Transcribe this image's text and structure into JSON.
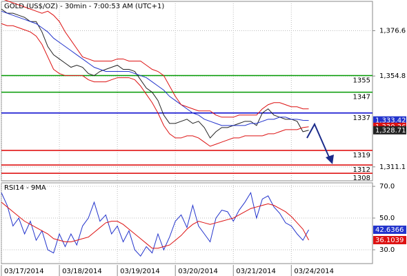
{
  "chart_data": [
    {
      "type": "line",
      "title": "GOLD (US$/OZ) - 30min - 7:00:53 AM (UTC+1)",
      "xlim": [
        0,
        64
      ],
      "xticks": [
        {
          "value": 0,
          "label": "03/17/2014"
        },
        {
          "value": 10,
          "label": "03/18/2014"
        },
        {
          "value": 20,
          "label": "03/19/2014"
        },
        {
          "value": 30,
          "label": "03/20/2014"
        },
        {
          "value": 40,
          "label": "03/21/2014"
        },
        {
          "value": 50,
          "label": "03/24/2014"
        }
      ],
      "ylim": [
        1304.4,
        1390.7
      ],
      "yticks": [
        {
          "value": 1376.6,
          "label": "1,376.6"
        },
        {
          "value": 1354.8,
          "label": "1,354.8"
        },
        {
          "value": 1311.1,
          "label": "1,311.1"
        }
      ],
      "grid": true,
      "series": [
        {
          "color": "#222222",
          "values": [
            1387,
            1385,
            1385,
            1384,
            1383,
            1381,
            1381,
            1376,
            1369,
            1365,
            1363,
            1361,
            1359,
            1360,
            1359,
            1356,
            1355,
            1357,
            1358,
            1359,
            1360,
            1358,
            1358,
            1357,
            1353,
            1349,
            1347,
            1343,
            1336,
            1332,
            1332,
            1333,
            1334,
            1332,
            1333,
            1330,
            1325,
            1328,
            1330,
            1330,
            1331,
            1332,
            1333,
            1333,
            1331,
            1337,
            1339,
            1336,
            1335,
            1334,
            1334,
            1333,
            1328,
            1328.71
          ]
        },
        {
          "color": "#2233cc",
          "values": [
            1386,
            1385,
            1384,
            1383,
            1382,
            1381,
            1380,
            1378,
            1376,
            1373,
            1371,
            1369,
            1367,
            1365,
            1363,
            1361,
            1359,
            1358,
            1357,
            1357,
            1357,
            1357,
            1357,
            1356,
            1355,
            1354,
            1352,
            1350,
            1348,
            1345,
            1343,
            1341,
            1339,
            1337,
            1336,
            1334,
            1333,
            1332,
            1331,
            1331,
            1331,
            1331,
            1331,
            1332,
            1332,
            1333,
            1334,
            1334,
            1335,
            1335,
            1334,
            1334,
            1333.5,
            1333.42
          ]
        },
        {
          "color": "#dd1111",
          "values": [
            1392,
            1391,
            1390,
            1389,
            1388,
            1387,
            1386,
            1385,
            1386,
            1384,
            1381,
            1376,
            1372,
            1368,
            1364,
            1363,
            1362,
            1362,
            1362,
            1362,
            1363,
            1363,
            1362,
            1362,
            1362,
            1360,
            1358,
            1357,
            1355,
            1350,
            1345,
            1341,
            1340,
            1339,
            1338,
            1338,
            1338,
            1336,
            1335,
            1335,
            1335,
            1336,
            1336,
            1336,
            1336,
            1339,
            1341,
            1342,
            1342,
            1341,
            1340,
            1340,
            1339,
            1339
          ]
        },
        {
          "color": "#dd1111",
          "values": [
            1380,
            1379,
            1379,
            1378,
            1377,
            1376,
            1374,
            1370,
            1364,
            1358,
            1356,
            1355,
            1355,
            1355,
            1355,
            1353,
            1352,
            1352,
            1352,
            1353,
            1354,
            1354,
            1354,
            1353,
            1350,
            1346,
            1342,
            1337,
            1331,
            1327,
            1325,
            1325,
            1326,
            1326,
            1325,
            1323,
            1321,
            1322,
            1323,
            1324,
            1325,
            1325,
            1326,
            1326,
            1326,
            1326,
            1327,
            1327,
            1328,
            1329,
            1329,
            1329,
            1330,
            1330.36
          ]
        }
      ],
      "levels": [
        {
          "value": 1355,
          "color": "#009900"
        },
        {
          "value": 1347,
          "color": "#009900"
        },
        {
          "value": 1337,
          "color": "#0000cc"
        },
        {
          "value": 1319,
          "color": "#dd0000"
        },
        {
          "value": 1312,
          "color": "#dd0000"
        },
        {
          "value": 1308,
          "color": "#dd0000"
        }
      ],
      "price_labels": [
        {
          "value": 1333.42,
          "label": "1,333.42",
          "color": "#2233cc"
        },
        {
          "value": 1330.36,
          "label": "1,330.36",
          "color": "#dd1111"
        },
        {
          "value": 1328.71,
          "label": "1,328.71",
          "color": "#222222"
        }
      ]
    },
    {
      "type": "line",
      "title": "RSI14 - 9MA",
      "xlim": [
        0,
        64
      ],
      "ylim": [
        21.3,
        72.2
      ],
      "yticks": [
        {
          "value": 70,
          "label": "70.0"
        },
        {
          "value": 50,
          "label": "50.0"
        },
        {
          "value": 30,
          "label": "30.0"
        }
      ],
      "grid": true,
      "series": [
        {
          "color": "#2233cc",
          "values": [
            66,
            58,
            45,
            50,
            40,
            48,
            36,
            42,
            30,
            28,
            40,
            32,
            40,
            33,
            45,
            50,
            60,
            48,
            52,
            40,
            45,
            35,
            42,
            30,
            26,
            32,
            28,
            40,
            30,
            38,
            48,
            52,
            44,
            58,
            45,
            40,
            35,
            50,
            55,
            54,
            48,
            55,
            60,
            66,
            50,
            62,
            64,
            57,
            53,
            47,
            45,
            40,
            36,
            42.6366
          ]
        },
        {
          "color": "#dd1111",
          "values": [
            60,
            57,
            54,
            51,
            48,
            46,
            44,
            42,
            40,
            37,
            36,
            35,
            35,
            36,
            37,
            38,
            41,
            44,
            47,
            48,
            48,
            46,
            43,
            40,
            37,
            34,
            31,
            31,
            32,
            33,
            36,
            39,
            43,
            46,
            48,
            47,
            46,
            47,
            48,
            49,
            50,
            52,
            54,
            56,
            57,
            58,
            59,
            58,
            56,
            54,
            51,
            47,
            43,
            36.1039
          ]
        }
      ],
      "price_labels": [
        {
          "value": 42.6366,
          "label": "42.6366",
          "color": "#2233cc"
        },
        {
          "value": 36.1039,
          "label": "36.1039",
          "color": "#dd1111"
        }
      ]
    }
  ]
}
